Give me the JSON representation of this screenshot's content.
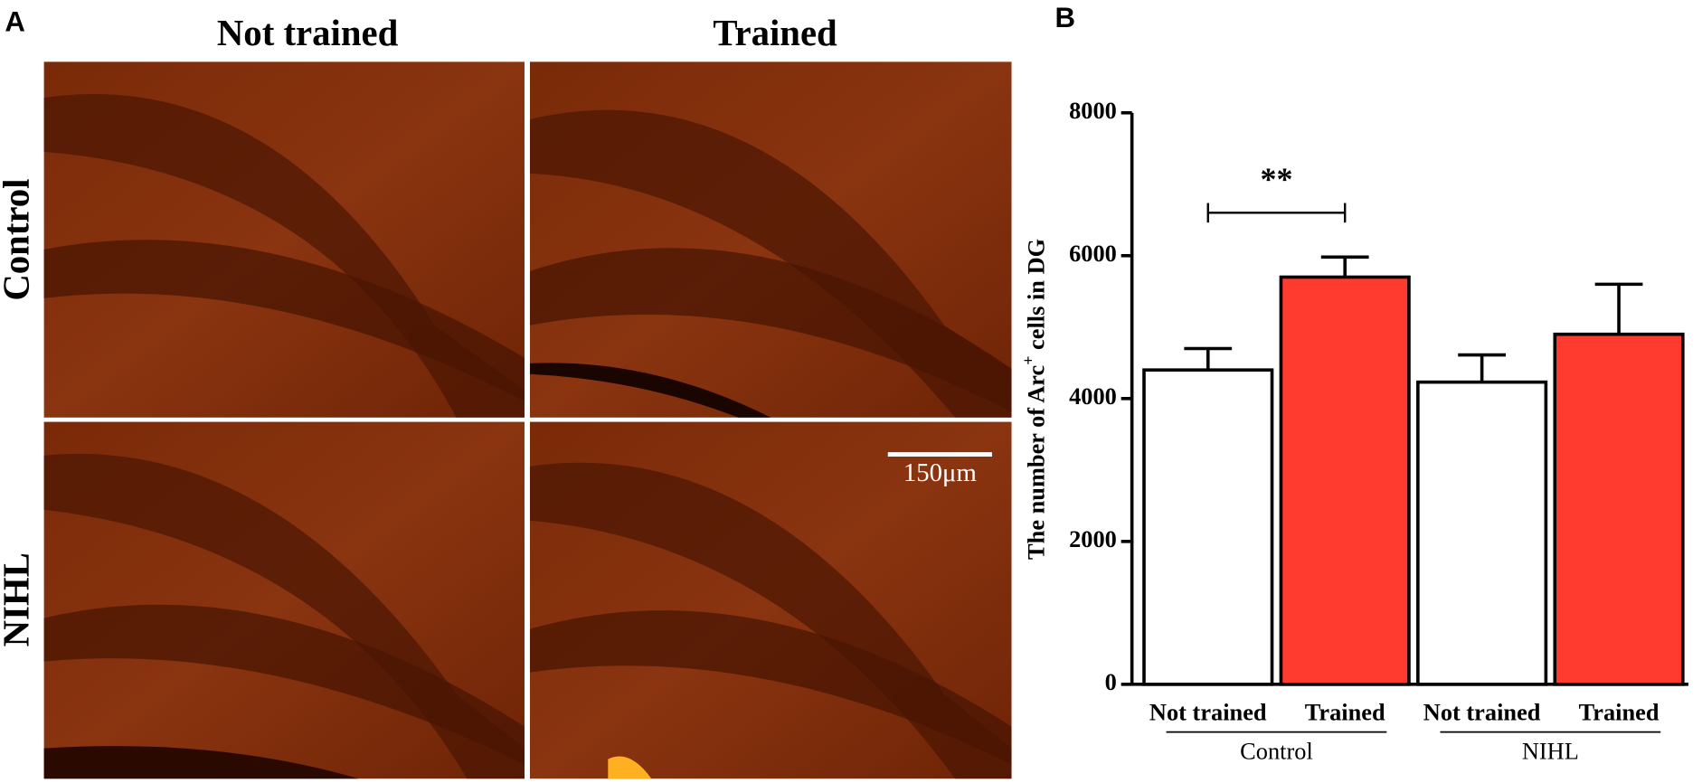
{
  "panel_a": {
    "label": "A",
    "columns": [
      "Not trained",
      "Trained"
    ],
    "rows": [
      "Control",
      "NIHL"
    ],
    "scale_bar": "150μm"
  },
  "chart_data": {
    "type": "bar",
    "label": "B",
    "ylabel": {
      "main": "The number of Arc",
      "sup": "+",
      "rest": " cells in DG"
    },
    "categories": [
      "Not trained",
      "Trained",
      "Not trained",
      "Trained"
    ],
    "groups": [
      {
        "name": "Control",
        "span": [
          0,
          1
        ]
      },
      {
        "name": "NIHL",
        "span": [
          2,
          3
        ]
      }
    ],
    "values": [
      4400,
      5700,
      4230,
      4900
    ],
    "errors": [
      300,
      280,
      380,
      700
    ],
    "colors": [
      "#ffffff",
      "#ff3b30",
      "#ffffff",
      "#ff3b30"
    ],
    "ylim": [
      0,
      8000
    ],
    "yticks": [
      0,
      2000,
      4000,
      6000,
      8000
    ],
    "annotations": [
      {
        "text": "**",
        "between": [
          0,
          1
        ],
        "y": 6600
      }
    ]
  }
}
